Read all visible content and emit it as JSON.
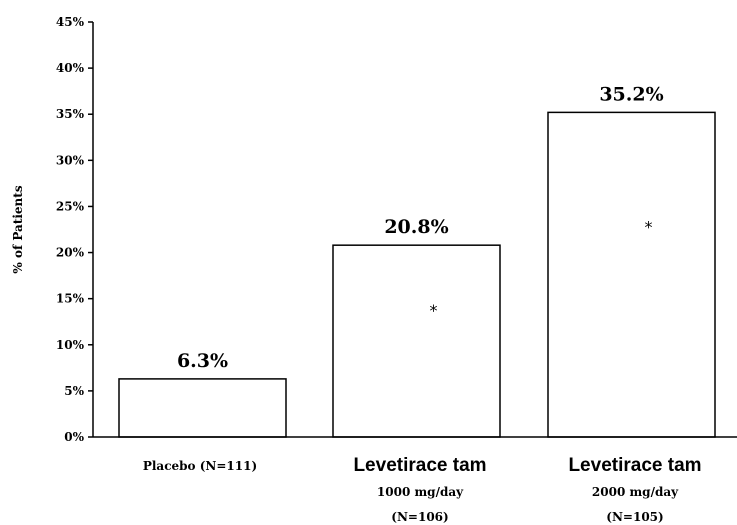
{
  "chart_data": {
    "type": "bar",
    "ylabel": "% of Patients",
    "ylim": [
      0,
      45
    ],
    "yticks": [
      "0%",
      "5%",
      "10%",
      "15%",
      "20%",
      "25%",
      "30%",
      "35%",
      "40%",
      "45%"
    ],
    "categories": [
      {
        "name": "Placebo (N=111)",
        "lines": []
      },
      {
        "name": "Levetirace tam",
        "lines": [
          "1000 mg/day",
          "(N=106)"
        ]
      },
      {
        "name": "Levetirace tam",
        "lines": [
          "2000 mg/day",
          "(N=105)"
        ]
      }
    ],
    "values": [
      6.3,
      20.8,
      35.2
    ],
    "value_labels": [
      "6.3%",
      "20.8%",
      "35.2%"
    ],
    "annotations": [
      "",
      "*",
      "*"
    ],
    "grid": false
  }
}
